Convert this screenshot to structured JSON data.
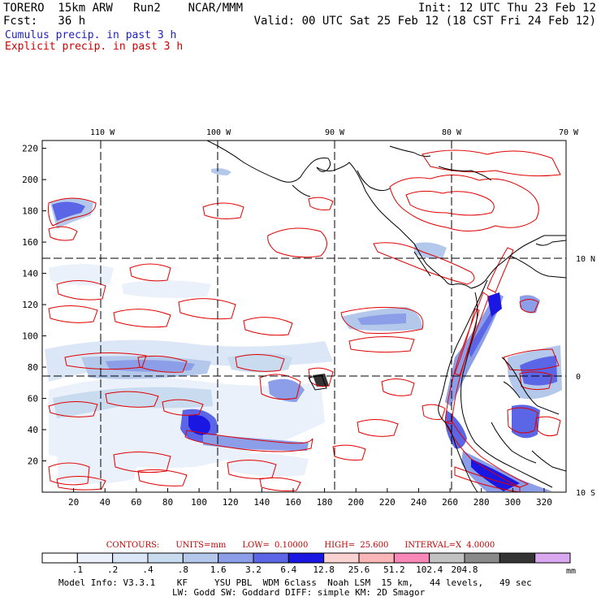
{
  "header": {
    "model": "TORERO  15km ARW   Run2    NCAR/MMM",
    "init": "Init: 12 UTC Thu 23 Feb 12",
    "fcst": "Fcst:   36 h",
    "valid": "Valid: 00 UTC Sat 25 Feb 12 (18 CST Fri 24 Feb 12)",
    "cumulus": "Cumulus precip. in past 3 h",
    "explicit": "Explicit precip. in past 3 h"
  },
  "colors": {
    "cumulus_text": "#1f1fbf",
    "explicit_text": "#d00000",
    "contour": "#e00000",
    "coast": "#000000"
  },
  "map": {
    "lon_labels": [
      "110 W",
      "100 W",
      "90 W",
      "80 W",
      "70 W"
    ],
    "lat_labels": [
      "10 N",
      "0",
      "10 S"
    ],
    "y_ticks": [
      "220",
      "200",
      "180",
      "160",
      "140",
      "120",
      "100",
      "80",
      "60",
      "40",
      "20"
    ],
    "x_ticks": [
      "20",
      "40",
      "60",
      "80",
      "100",
      "120",
      "140",
      "160",
      "180",
      "200",
      "220",
      "240",
      "260",
      "280",
      "300",
      "320"
    ],
    "x_range": [
      0,
      334
    ],
    "y_range": [
      0,
      225
    ]
  },
  "contour_info": {
    "contours": "CONTOURS:",
    "units": "UNITS=mm",
    "low": "LOW= 0.10000",
    "high": "HIGH= 25.600",
    "interval": "INTERVAL=X  4.0000"
  },
  "colorbar": {
    "bins": [
      "#ffffff",
      "#ebf1fb",
      "#dbe6f6",
      "#c8dbef",
      "#b3c8ea",
      "#8c9ee8",
      "#5a66e6",
      "#1b17e3",
      "#fbd2d2",
      "#fab6b6",
      "#f888b8",
      "#c2c2c2",
      "#8a8a8a",
      "#343434",
      "#d9a8f0"
    ],
    "labels": [
      ".1",
      ".2",
      ".4",
      ".8",
      "1.6",
      "3.2",
      "6.4",
      "12.8",
      "25.6",
      "51.2",
      "102.4",
      "204.8"
    ],
    "unit": "mm"
  },
  "model_info": {
    "line1": "Model Info: V3.3.1    KF     YSU PBL  WDM 6class  Noah LSM  15 km,   44 levels,   49 sec",
    "line2": "LW: Godd SW: Goddard DIFF: simple KM: 2D Smagor"
  }
}
